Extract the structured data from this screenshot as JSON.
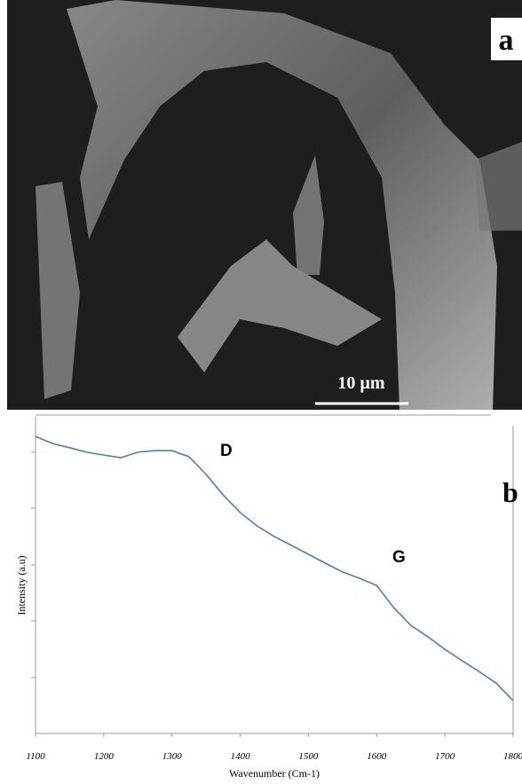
{
  "panel_a": {
    "label": "a",
    "scale_bar": "10 µm"
  },
  "chart_data": {
    "type": "line",
    "panel_label": "b",
    "x_label": "Wavenumber (Cm-1)",
    "y_label": "Intensity (a.u)",
    "annotations": [
      "D",
      "G"
    ],
    "x": [
      1100,
      1125,
      1150,
      1175,
      1200,
      1225,
      1250,
      1275,
      1300,
      1325,
      1350,
      1375,
      1400,
      1425,
      1450,
      1475,
      1500,
      1525,
      1550,
      1575,
      1600,
      1625,
      1650,
      1675,
      1700,
      1725,
      1750,
      1775,
      1800
    ],
    "series": [
      {
        "color": "#4a7ebb",
        "values": [
          92.5,
          90.3,
          89,
          87.6,
          86.7,
          85.9,
          87.6,
          88.1,
          88.1,
          86.2,
          80.7,
          74.3,
          68.8,
          64.6,
          61.3,
          58.6,
          55.8,
          53.0,
          50.3,
          48.3,
          46.1,
          39.2,
          33.7,
          30.1,
          26.2,
          22.7,
          19.3,
          15.7,
          10.2
        ]
      }
    ],
    "xlim": [
      1100,
      1800
    ],
    "ylim": [
      0,
      100
    ],
    "xticks": [
      1100,
      1200,
      1300,
      1400,
      1500,
      1600,
      1700,
      1800
    ]
  }
}
